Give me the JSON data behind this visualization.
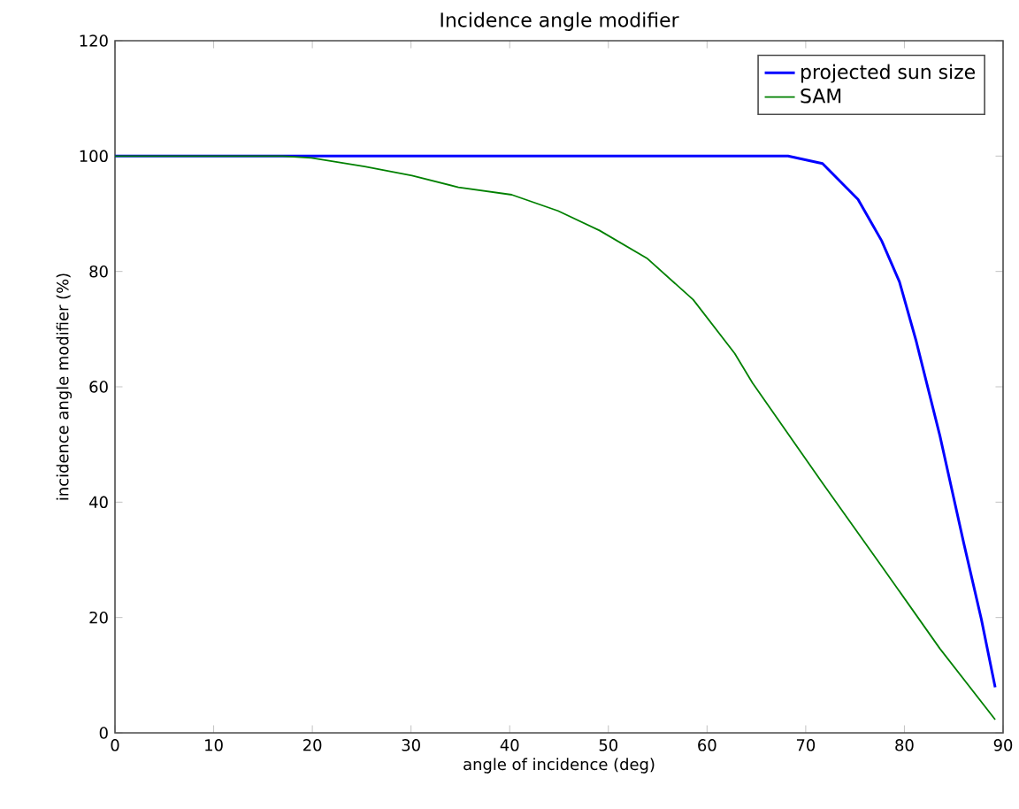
{
  "chart_data": {
    "type": "line",
    "title": "Incidence angle modifier",
    "xlabel": "angle of incidence (deg)",
    "ylabel": "incidence angle modifier (%)",
    "xlim": [
      0,
      90
    ],
    "ylim": [
      0,
      120
    ],
    "xticks": [
      0,
      10,
      20,
      30,
      40,
      50,
      60,
      70,
      80,
      90
    ],
    "yticks": [
      0,
      20,
      40,
      60,
      80,
      100,
      120
    ],
    "legend": "top right",
    "series": [
      {
        "name": "projected sun size",
        "color": "#0000ff",
        "x": [
          0,
          10,
          20,
          30,
          40,
          50,
          60,
          68.2,
          71.7,
          75.3,
          77.7,
          79.5,
          81.2,
          83.6,
          86.0,
          87.8,
          89.2
        ],
        "values": [
          100,
          100,
          100,
          100,
          100,
          100,
          100,
          100,
          98.7,
          92.5,
          85.3,
          78.2,
          67.9,
          51.5,
          33.0,
          19.7,
          7.9
        ]
      },
      {
        "name": "SAM",
        "color": "#008000",
        "x": [
          0,
          10,
          17,
          19.9,
          25.3,
          30.1,
          34.8,
          40.2,
          44.9,
          49.1,
          53.9,
          58.6,
          62.8,
          64.6,
          71.7,
          77.7,
          83.6,
          89.2
        ],
        "values": [
          100,
          100,
          100,
          99.7,
          98.2,
          96.6,
          94.6,
          93.3,
          90.5,
          87.1,
          82.3,
          75.1,
          65.8,
          60.7,
          43.3,
          28.9,
          14.6,
          2.3
        ]
      }
    ]
  }
}
